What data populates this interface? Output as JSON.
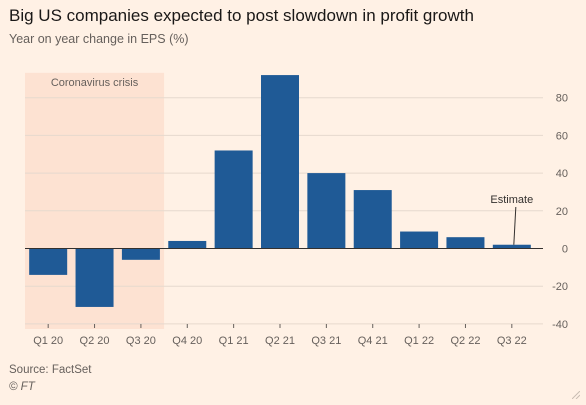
{
  "header": {
    "title": "Big US companies expected to post slowdown in profit growth",
    "subtitle": "Year on year change in EPS (%)"
  },
  "footer": {
    "source": "Source: FactSet",
    "copyright": "© FT"
  },
  "colors": {
    "background": "#fff1e5",
    "bar": "#1f5a96",
    "shading": "#fde2d2",
    "gridline": "#e6d9ce",
    "zeroline": "#33302e"
  },
  "chart_data": {
    "type": "bar",
    "categories": [
      "Q1 20",
      "Q2 20",
      "Q3 20",
      "Q4 20",
      "Q1 21",
      "Q2 21",
      "Q3 21",
      "Q4 21",
      "Q1 22",
      "Q2 22",
      "Q3 22"
    ],
    "values": [
      -14,
      -31,
      -6,
      4,
      52,
      92,
      40,
      31,
      9,
      6,
      2
    ],
    "ylim": [
      -40,
      90
    ],
    "yticks": [
      -40,
      -20,
      0,
      20,
      40,
      60,
      80
    ],
    "ytick_labels": [
      "-40",
      "-20",
      "0",
      "20",
      "40",
      "60",
      "80"
    ],
    "grid": true,
    "y_axis_side": "right",
    "shaded_region": {
      "label": "Coronavirus crisis",
      "from_category": "Q1 20",
      "to_category": "Q3 20"
    },
    "annotations": [
      {
        "text": "Estimate",
        "category": "Q3 22"
      }
    ]
  }
}
